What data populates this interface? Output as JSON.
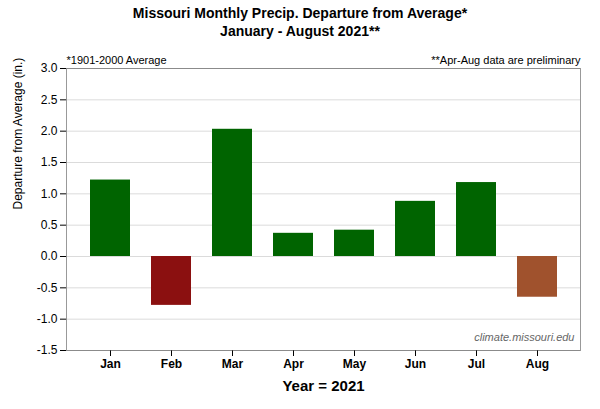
{
  "chart_data": {
    "type": "bar",
    "title": "Missouri Monthly Precip. Departure from Average*",
    "subtitle": "January - August 2021**",
    "categories": [
      "Jan",
      "Feb",
      "Mar",
      "Apr",
      "May",
      "Jun",
      "Jul",
      "Aug"
    ],
    "values": [
      1.22,
      -0.78,
      2.03,
      0.37,
      0.42,
      0.88,
      1.18,
      -0.65
    ],
    "colors": [
      "#006400",
      "#8B1010",
      "#006400",
      "#006400",
      "#006400",
      "#006400",
      "#006400",
      "#A0522D"
    ],
    "xlabel": "Year = 2021",
    "ylabel": "Departure from Average (in.)",
    "ylim": [
      -1.5,
      3.0
    ],
    "yticks": [
      -1.5,
      {
        "value": -1.0,
        "label": "-1.0"
      },
      -0.5,
      {
        "value": 0.0,
        "label": "0.0"
      },
      0.5,
      {
        "value": 1.0,
        "label": "1.0"
      },
      1.5,
      {
        "value": 2.0,
        "label": "2.0"
      },
      2.5,
      {
        "value": 3.0,
        "label": "3.0"
      }
    ],
    "grid": true,
    "annotations": [
      "*1901-2000 Average",
      "**Apr-Aug data are preliminary",
      "climate.missouri.edu"
    ]
  }
}
